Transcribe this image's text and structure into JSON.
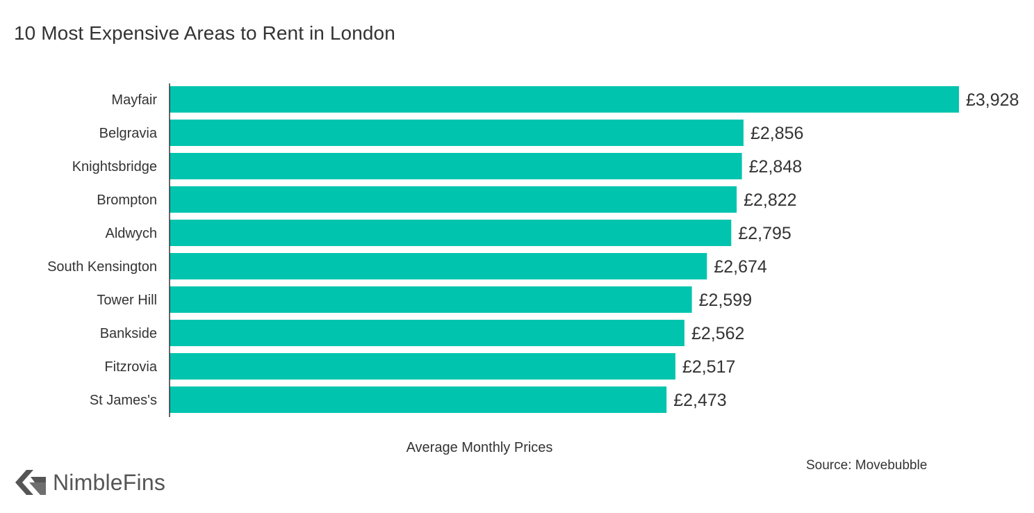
{
  "title": "10 Most Expensive Areas to Rent in London",
  "source": "Source: Movebubble",
  "brand": {
    "name": "NimbleFins",
    "icon": "chevron-left-icon"
  },
  "colors": {
    "bar": "#00c4ae",
    "text": "#333333",
    "axis": "#333333"
  },
  "chart_data": {
    "type": "bar",
    "orientation": "horizontal",
    "title": "10 Most Expensive Areas to Rent in London",
    "xlabel": "Average Monthly Prices",
    "ylabel": "",
    "categories": [
      "Mayfair",
      "Belgravia",
      "Knightsbridge",
      "Brompton",
      "Aldwych",
      "South Kensington",
      "Tower Hill",
      "Bankside",
      "Fitzrovia",
      "St James's"
    ],
    "values": [
      3928,
      2856,
      2848,
      2822,
      2795,
      2674,
      2599,
      2562,
      2517,
      2473
    ],
    "value_labels": [
      "£3,928",
      "£2,856",
      "£2,848",
      "£2,822",
      "£2,795",
      "£2,674",
      "£2,599",
      "£2,562",
      "£2,517",
      "£2,473"
    ],
    "xlim": [
      0,
      3928
    ],
    "grid": false,
    "legend": "none"
  }
}
